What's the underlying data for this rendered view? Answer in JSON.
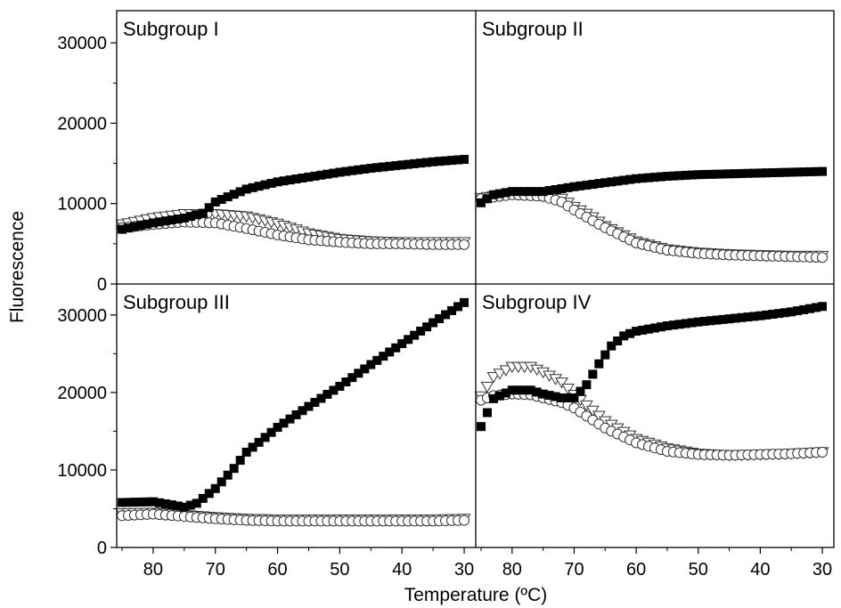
{
  "ylabel": "Fluorescence",
  "xlabel": "Temperature (ºC)",
  "colors": {
    "filled": "#000000",
    "open_stroke": "#333333",
    "background": "#ffffff"
  },
  "chart_data": [
    {
      "type": "scatter",
      "title": "Subgroup I",
      "xlim": [
        85,
        29
      ],
      "ylim": [
        0,
        30000
      ],
      "yticks": [
        0,
        10000,
        20000,
        30000
      ],
      "xticks": [
        80,
        70,
        60,
        50,
        40,
        30
      ],
      "grid": false,
      "series": [
        {
          "marker": "filled-square",
          "x": [
            85,
            80,
            75,
            72,
            70,
            65,
            60,
            55,
            50,
            45,
            40,
            35,
            30
          ],
          "y": [
            6800,
            7600,
            8200,
            8800,
            10200,
            11800,
            12700,
            13300,
            13900,
            14400,
            14800,
            15200,
            15500
          ]
        },
        {
          "marker": "open-triangle-down",
          "x": [
            85,
            80,
            75,
            70,
            65,
            60,
            55,
            50,
            45,
            40,
            35,
            30
          ],
          "y": [
            7400,
            8200,
            8700,
            8700,
            8400,
            7500,
            6300,
            5600,
            5300,
            5200,
            5200,
            5200
          ]
        },
        {
          "marker": "open-circle",
          "x": [
            85,
            80,
            75,
            70,
            65,
            60,
            55,
            50,
            45,
            40,
            35,
            30
          ],
          "y": [
            7000,
            7400,
            7700,
            7600,
            6900,
            6100,
            5500,
            5200,
            5000,
            5000,
            4900,
            4900
          ]
        }
      ]
    },
    {
      "type": "scatter",
      "title": "Subgroup II",
      "xlim": [
        85,
        29
      ],
      "ylim": [
        0,
        30000
      ],
      "yticks": [
        0,
        10000,
        20000,
        30000
      ],
      "xticks": [
        80,
        70,
        60,
        50,
        40,
        30
      ],
      "grid": false,
      "series": [
        {
          "marker": "filled-square",
          "x": [
            85,
            83,
            80,
            75,
            70,
            65,
            60,
            55,
            50,
            45,
            40,
            35,
            30
          ],
          "y": [
            10100,
            11100,
            11500,
            11500,
            12100,
            12600,
            13100,
            13400,
            13600,
            13700,
            13800,
            13900,
            14000
          ]
        },
        {
          "marker": "open-triangle-down",
          "x": [
            85,
            80,
            75,
            72,
            70,
            67,
            65,
            60,
            55,
            50,
            45,
            40,
            35,
            30
          ],
          "y": [
            10700,
            11300,
            11200,
            10600,
            9600,
            8300,
            7200,
            5300,
            4300,
            3900,
            3700,
            3600,
            3500,
            3500
          ]
        },
        {
          "marker": "open-circle",
          "x": [
            85,
            80,
            75,
            72,
            70,
            65,
            60,
            55,
            50,
            45,
            40,
            35,
            30
          ],
          "y": [
            10600,
            11100,
            10900,
            10200,
            9200,
            7000,
            5100,
            4200,
            3800,
            3600,
            3500,
            3400,
            3300
          ]
        }
      ]
    },
    {
      "type": "scatter",
      "title": "Subgroup III",
      "xlim": [
        85,
        29
      ],
      "ylim": [
        0,
        30000
      ],
      "yticks": [
        0,
        10000,
        20000,
        30000
      ],
      "xticks": [
        80,
        70,
        60,
        50,
        40,
        30
      ],
      "grid": false,
      "series": [
        {
          "marker": "filled-square",
          "x": [
            85,
            80,
            77,
            75,
            73,
            70,
            67,
            65,
            62,
            60,
            55,
            50,
            45,
            40,
            35,
            30
          ],
          "y": [
            5800,
            5900,
            5500,
            5200,
            5700,
            7600,
            10200,
            12300,
            14200,
            15500,
            18200,
            20800,
            23600,
            26300,
            29000,
            31600
          ]
        },
        {
          "marker": "open-triangle-down",
          "x": [
            85,
            80,
            75,
            70,
            65,
            60,
            55,
            50,
            45,
            40,
            35,
            30
          ],
          "y": [
            4400,
            4500,
            4200,
            3900,
            3700,
            3600,
            3600,
            3600,
            3600,
            3600,
            3600,
            3700
          ]
        },
        {
          "marker": "open-circle",
          "x": [
            85,
            80,
            75,
            70,
            65,
            60,
            55,
            50,
            45,
            40,
            35,
            30
          ],
          "y": [
            4100,
            4300,
            4000,
            3700,
            3500,
            3400,
            3400,
            3400,
            3400,
            3400,
            3400,
            3500
          ]
        }
      ]
    },
    {
      "type": "scatter",
      "title": "Subgroup IV",
      "xlim": [
        85,
        29
      ],
      "ylim": [
        0,
        30000
      ],
      "yticks": [
        0,
        10000,
        20000,
        30000
      ],
      "xticks": [
        80,
        70,
        60,
        50,
        40,
        30
      ],
      "grid": false,
      "series": [
        {
          "marker": "filled-square",
          "x": [
            85,
            83,
            80,
            77,
            75,
            72,
            70,
            68,
            66,
            64,
            62,
            60,
            55,
            50,
            45,
            40,
            35,
            30
          ],
          "y": [
            15600,
            19200,
            20300,
            20300,
            19800,
            19300,
            19300,
            21000,
            23700,
            26000,
            27300,
            27900,
            28600,
            29100,
            29500,
            29900,
            30400,
            31100
          ]
        },
        {
          "marker": "open-triangle-down",
          "x": [
            85,
            83,
            80,
            77,
            75,
            72,
            70,
            65,
            60,
            55,
            50,
            45,
            40,
            35,
            30
          ],
          "y": [
            19500,
            22000,
            23300,
            23300,
            22600,
            21300,
            19700,
            16300,
            14000,
            12800,
            12100,
            11900,
            12000,
            12100,
            12300
          ]
        },
        {
          "marker": "open-circle",
          "x": [
            85,
            83,
            80,
            77,
            75,
            72,
            70,
            65,
            60,
            55,
            50,
            45,
            40,
            35,
            30
          ],
          "y": [
            19000,
            19600,
            19800,
            19700,
            19300,
            18700,
            18000,
            15400,
            13500,
            12400,
            12000,
            11900,
            12000,
            12100,
            12300
          ]
        }
      ]
    }
  ]
}
